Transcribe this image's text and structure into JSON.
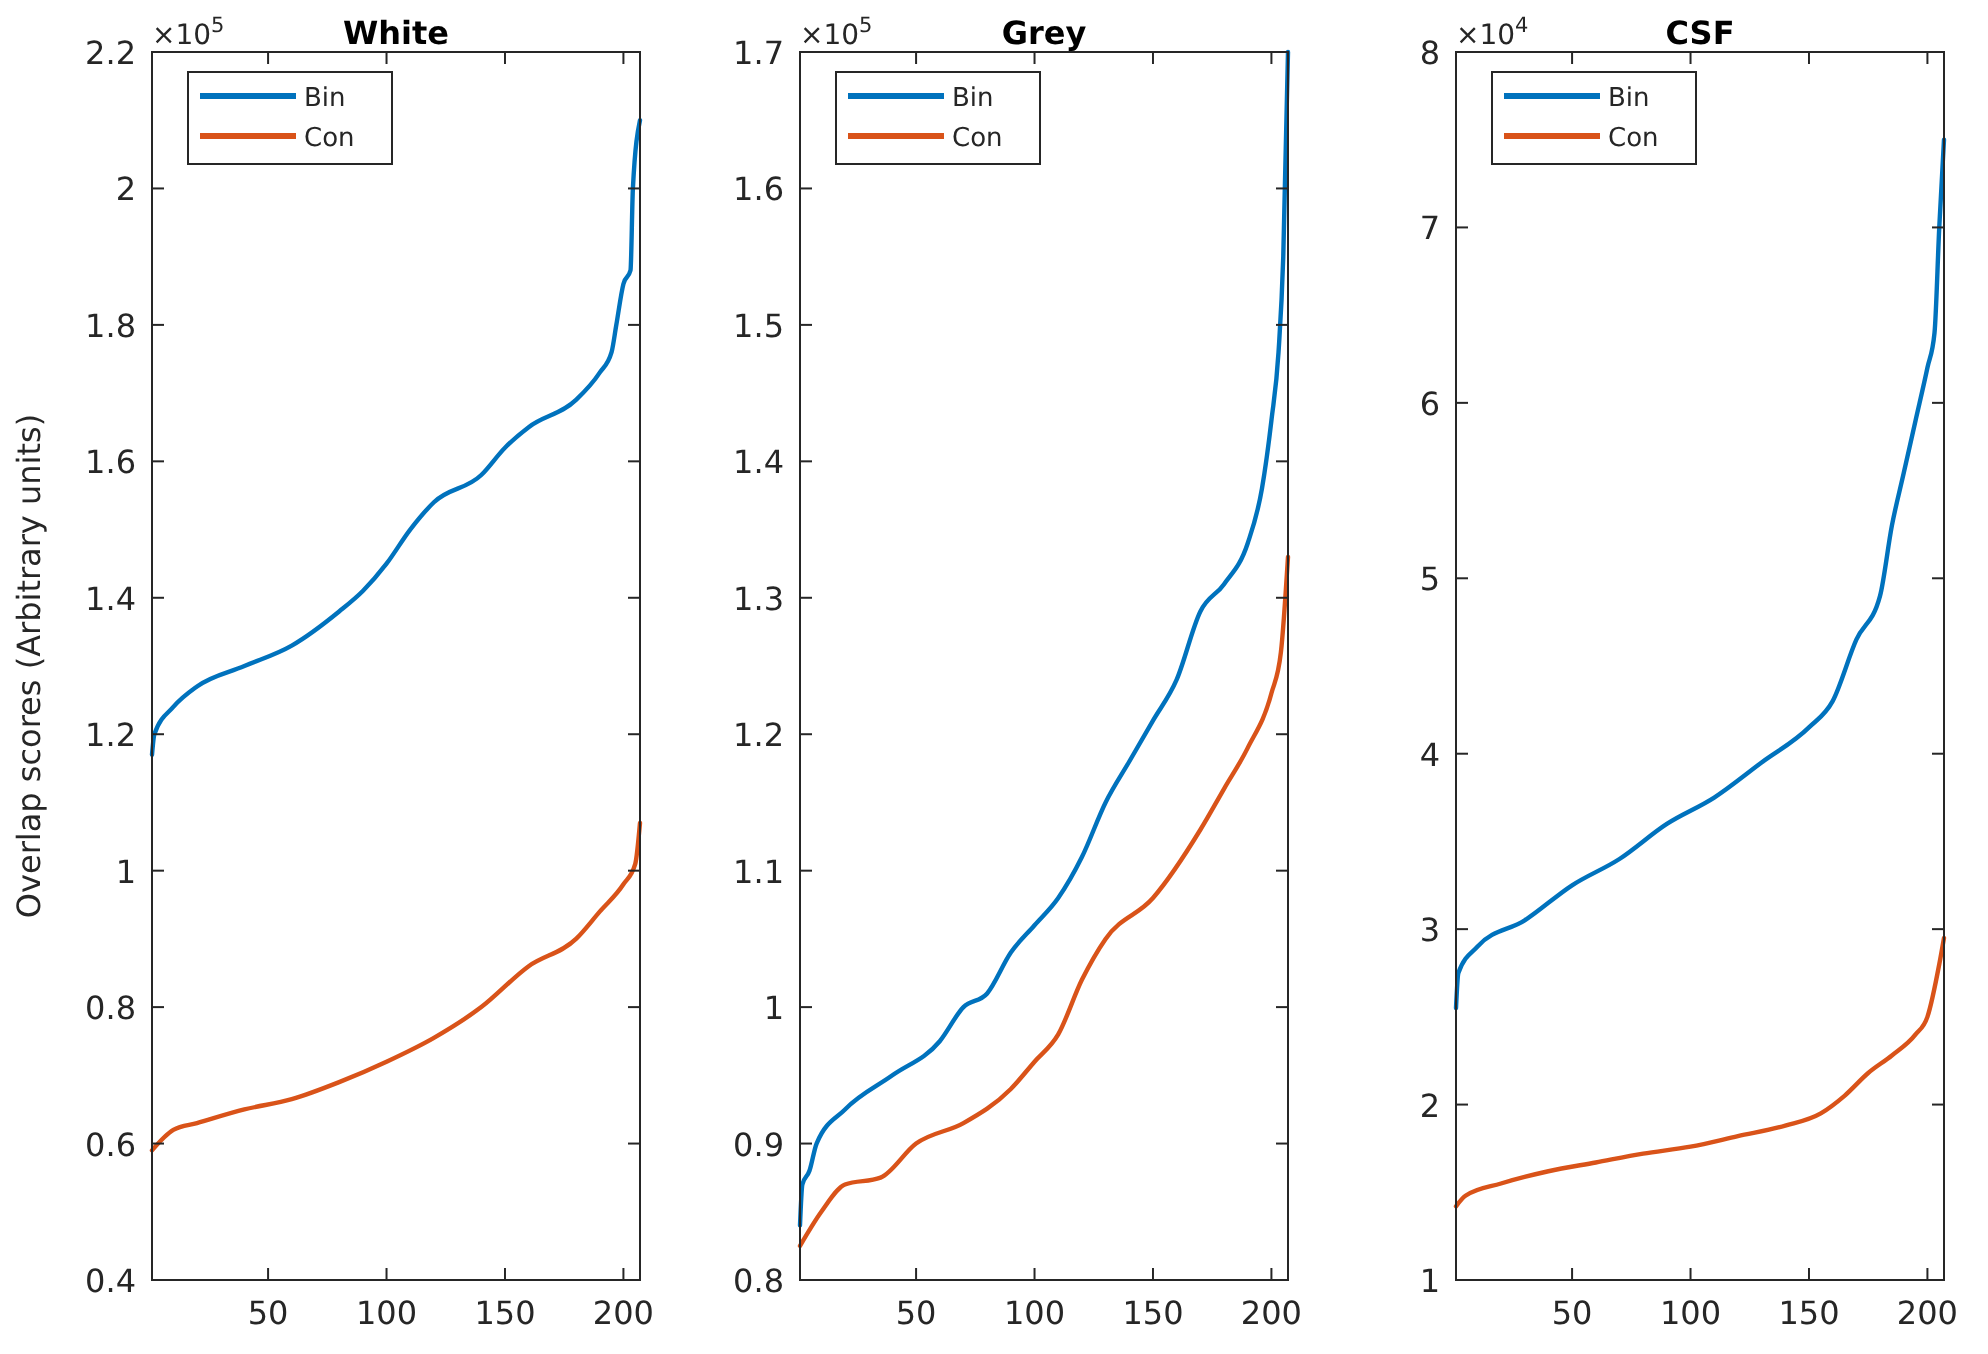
{
  "chart_data": [
    {
      "type": "line",
      "title": "White",
      "ylabel": "Overlap scores (Arbitrary units)",
      "annotations": [
        "×10$^{5}$"
      ],
      "legend": "top left",
      "xlim": [
        1,
        207
      ],
      "xticks": [
        50,
        100,
        150,
        200
      ],
      "ylim": [
        0.4,
        2.2
      ],
      "yticks": [
        0.4,
        0.6,
        0.8,
        1,
        1.2,
        1.4,
        1.6,
        1.8,
        2,
        2.2
      ],
      "grid": false,
      "series": [
        {
          "name": "Bin",
          "color": "#0072bd",
          "x": [
            1,
            2,
            10,
            20,
            40,
            60,
            80,
            90,
            100,
            110,
            120,
            140,
            150,
            160,
            180,
            190,
            195,
            197,
            200,
            203,
            204,
            207
          ],
          "values": [
            1.17,
            1.2,
            1.24,
            1.27,
            1.3,
            1.33,
            1.38,
            1.41,
            1.45,
            1.5,
            1.54,
            1.58,
            1.62,
            1.65,
            1.69,
            1.73,
            1.76,
            1.8,
            1.86,
            1.88,
            2.0,
            2.1
          ]
        },
        {
          "name": "Con",
          "color": "#d95319",
          "x": [
            1,
            10,
            20,
            40,
            60,
            80,
            100,
            120,
            140,
            160,
            180,
            190,
            200,
            205,
            207
          ],
          "values": [
            0.59,
            0.62,
            0.63,
            0.65,
            0.665,
            0.69,
            0.72,
            0.755,
            0.8,
            0.86,
            0.9,
            0.94,
            0.98,
            1.01,
            1.07
          ]
        }
      ]
    },
    {
      "type": "line",
      "title": "Grey",
      "annotations": [
        "×10$^{5}$"
      ],
      "legend": "top left",
      "xlim": [
        1,
        207
      ],
      "xticks": [
        50,
        100,
        150,
        200
      ],
      "ylim": [
        0.8,
        1.7
      ],
      "yticks": [
        0.8,
        0.9,
        1,
        1.1,
        1.2,
        1.3,
        1.4,
        1.5,
        1.6,
        1.7
      ],
      "grid": false,
      "series": [
        {
          "name": "Bin",
          "color": "#0072bd",
          "x": [
            1,
            2,
            5,
            8,
            20,
            40,
            60,
            70,
            80,
            90,
            100,
            110,
            120,
            130,
            140,
            150,
            160,
            170,
            180,
            190,
            196,
            200,
            203,
            205,
            207
          ],
          "values": [
            0.84,
            0.87,
            0.88,
            0.9,
            0.925,
            0.95,
            0.975,
            1.0,
            1.01,
            1.04,
            1.06,
            1.08,
            1.11,
            1.15,
            1.18,
            1.21,
            1.24,
            1.29,
            1.31,
            1.34,
            1.38,
            1.43,
            1.48,
            1.55,
            1.7
          ]
        },
        {
          "name": "Con",
          "color": "#d95319",
          "x": [
            1,
            10,
            20,
            35,
            50,
            70,
            90,
            100,
            110,
            120,
            130,
            150,
            170,
            180,
            190,
            200,
            204,
            207
          ],
          "values": [
            0.825,
            0.85,
            0.87,
            0.875,
            0.9,
            0.915,
            0.94,
            0.96,
            0.98,
            1.02,
            1.05,
            1.08,
            1.13,
            1.16,
            1.19,
            1.23,
            1.26,
            1.33
          ]
        }
      ]
    },
    {
      "type": "line",
      "title": "CSF",
      "annotations": [
        "×10$^{4}$"
      ],
      "legend": "top left",
      "xlim": [
        1,
        207
      ],
      "xticks": [
        50,
        100,
        150,
        200
      ],
      "ylim": [
        1,
        8
      ],
      "yticks": [
        1,
        2,
        3,
        4,
        5,
        6,
        7,
        8
      ],
      "grid": false,
      "series": [
        {
          "name": "Bin",
          "color": "#0072bd",
          "x": [
            1,
            2,
            10,
            30,
            50,
            70,
            90,
            110,
            130,
            150,
            160,
            170,
            180,
            185,
            190,
            195,
            200,
            203,
            205,
            207
          ],
          "values": [
            2.55,
            2.75,
            2.9,
            3.05,
            3.25,
            3.4,
            3.6,
            3.75,
            3.95,
            4.15,
            4.3,
            4.65,
            4.9,
            5.3,
            5.6,
            5.9,
            6.2,
            6.4,
            7.0,
            7.5
          ]
        },
        {
          "name": "Con",
          "color": "#d95319",
          "x": [
            1,
            5,
            20,
            40,
            60,
            80,
            100,
            120,
            140,
            155,
            165,
            175,
            185,
            195,
            200,
            205,
            207
          ],
          "values": [
            1.42,
            1.48,
            1.55,
            1.62,
            1.67,
            1.72,
            1.76,
            1.82,
            1.88,
            1.95,
            2.05,
            2.18,
            2.28,
            2.4,
            2.5,
            2.8,
            2.95
          ]
        }
      ]
    }
  ]
}
